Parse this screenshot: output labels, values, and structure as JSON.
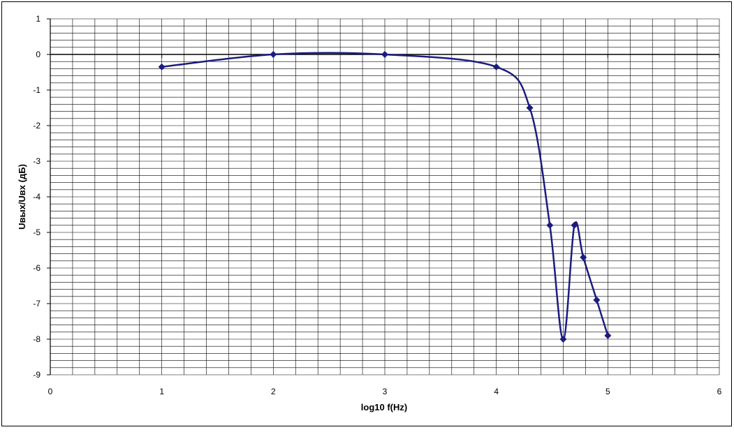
{
  "chart_data": {
    "type": "line",
    "smooth": true,
    "x_label": "log10 f(Hz)",
    "y_label": "Uвых/Uвх (дБ)",
    "x": [
      1,
      2,
      3,
      4,
      4.3,
      4.48,
      4.6,
      4.7,
      4.78,
      4.9,
      5
    ],
    "series": [
      {
        "color": "#1c1c80",
        "marker": "diamond",
        "values": [
          -0.35,
          0,
          0,
          -0.35,
          -1.5,
          -4.8,
          -8.0,
          -4.8,
          -5.7,
          -6.9,
          -7.9
        ]
      }
    ],
    "xlim": [
      0,
      6
    ],
    "xticks": [
      0,
      1,
      2,
      3,
      4,
      5,
      6
    ],
    "ylim": [
      -9,
      1
    ],
    "yticks": [
      -9,
      -8,
      -7,
      -6,
      -5,
      -4,
      -3,
      -2,
      -1,
      0,
      1
    ],
    "grid": true,
    "xgrid": [
      0,
      0.2,
      0.4,
      0.6,
      0.8,
      1,
      1.2,
      1.4,
      1.6,
      1.8,
      2,
      2.2,
      2.4,
      2.6,
      2.8,
      3,
      3.2,
      3.4,
      3.6,
      3.8,
      4,
      4.2,
      4.4,
      4.6,
      4.8,
      5,
      5.2,
      5.4,
      5.6,
      5.8,
      6
    ],
    "ygrid": [
      -9,
      -8.8,
      -8.6,
      -8.4,
      -8.2,
      -8,
      -7.8,
      -7.6,
      -7.4,
      -7.2,
      -7,
      -6.8,
      -6.6,
      -6.4,
      -6.2,
      -6,
      -5.8,
      -5.6,
      -5.4,
      -5.2,
      -5,
      -4.8,
      -4.6,
      -4.4,
      -4.2,
      -4,
      -3.8,
      -3.6,
      -3.4,
      -3.2,
      -3,
      -2.8,
      -2.6,
      -2.4,
      -2.2,
      -2,
      -1.8,
      -1.6,
      -1.4,
      -1.2,
      -1,
      -0.8,
      -0.6,
      -0.4,
      -0.2,
      0,
      0.2,
      0.4,
      0.6,
      0.8,
      1
    ]
  }
}
